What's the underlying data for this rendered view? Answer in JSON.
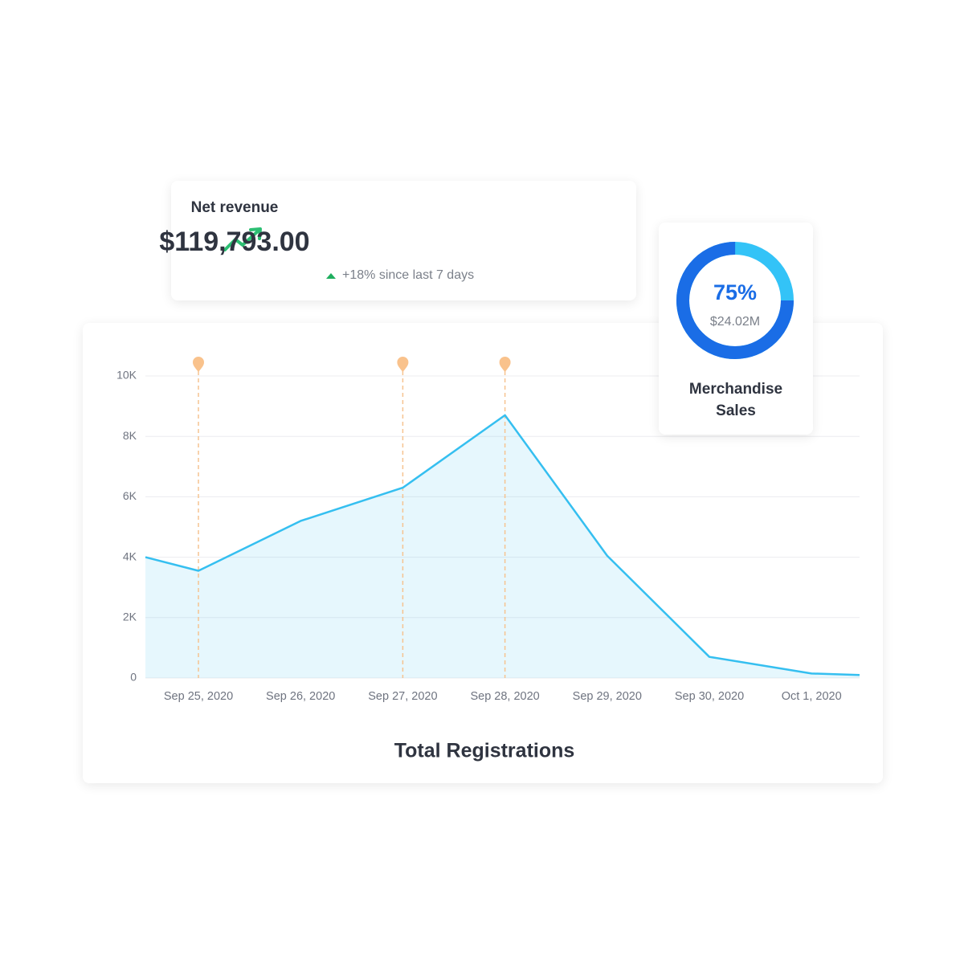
{
  "revenue_card": {
    "title": "Net revenue",
    "value": "$119,793.00",
    "change": "+18% since last 7 days"
  },
  "chart_data": [
    {
      "type": "area",
      "title": "Total Registrations",
      "categories": [
        null,
        "Sep 25, 2020",
        "Sep 26, 2020",
        "Sep 27, 2020",
        "Sep 28, 2020",
        "Sep 29, 2020",
        "Sep 30, 2020",
        "Oct 1, 2020",
        null
      ],
      "values": [
        4000,
        3550,
        5200,
        6300,
        8700,
        4050,
        700,
        150,
        100
      ],
      "color": "#35bff0",
      "ylim": [
        0,
        10000
      ],
      "yticks": [
        0,
        {
          "value": 2000,
          "label": "2K"
        },
        {
          "value": 4000,
          "label": "4K"
        },
        {
          "value": 6000,
          "label": "6K"
        },
        {
          "value": 8000,
          "label": "8K"
        },
        {
          "value": 10000,
          "label": "10K"
        }
      ],
      "grid": true,
      "event_markers": [
        "Sep 25, 2020",
        "Sep 27, 2020",
        "Sep 28, 2020"
      ]
    },
    {
      "type": "donut",
      "title": "Merchandise Sales",
      "subtitle": "$24.02M",
      "values": [
        75
      ],
      "value_labels": [
        "75%"
      ],
      "color": "#1a6de6",
      "track_color": "#33c3f7"
    }
  ]
}
